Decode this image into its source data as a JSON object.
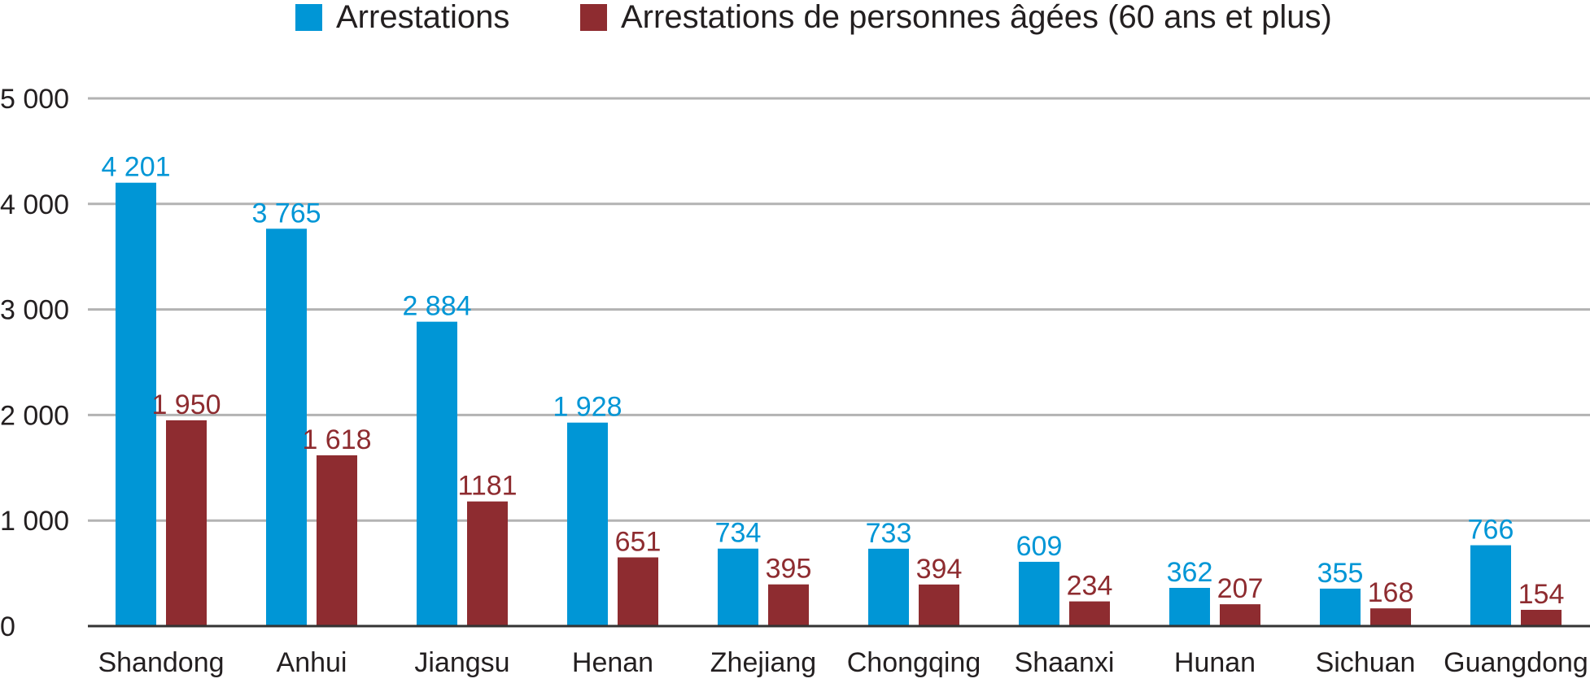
{
  "chart_data": {
    "type": "bar",
    "title": "",
    "xlabel": "",
    "ylabel": "",
    "categories": [
      "Shandong",
      "Anhui",
      "Jiangsu",
      "Henan",
      "Zhejiang",
      "Chongqing",
      "Shaanxi",
      "Hunan",
      "Sichuan",
      "Guangdong"
    ],
    "series": [
      {
        "name": "Arrestations",
        "color": "#0096d6",
        "values": [
          4201,
          3765,
          2884,
          1928,
          734,
          733,
          609,
          362,
          355,
          766
        ],
        "labels": [
          "4 201",
          "3 765",
          "2 884",
          "1 928",
          "734",
          "733",
          "609",
          "362",
          "355",
          "766"
        ]
      },
      {
        "name": "Arrestations de personnes âgées (60 ans et plus)",
        "color": "#8e2c30",
        "values": [
          1950,
          1618,
          1181,
          651,
          395,
          394,
          234,
          207,
          168,
          154
        ],
        "labels": [
          "1 950",
          "1 618",
          "1181",
          "651",
          "395",
          "394",
          "234",
          "207",
          "168",
          "154"
        ]
      }
    ],
    "ylim": [
      0,
      5000
    ],
    "yticks": [
      0,
      1000,
      2000,
      3000,
      4000,
      5000
    ],
    "ytick_labels": [
      "0",
      "1 000",
      "2 000",
      "3 000",
      "4 000",
      "5 000"
    ],
    "grid": true,
    "legend_position": "top-center",
    "grid_color": "#b3b3b3",
    "axis_color": "#333333",
    "text_color": "#231f20"
  }
}
